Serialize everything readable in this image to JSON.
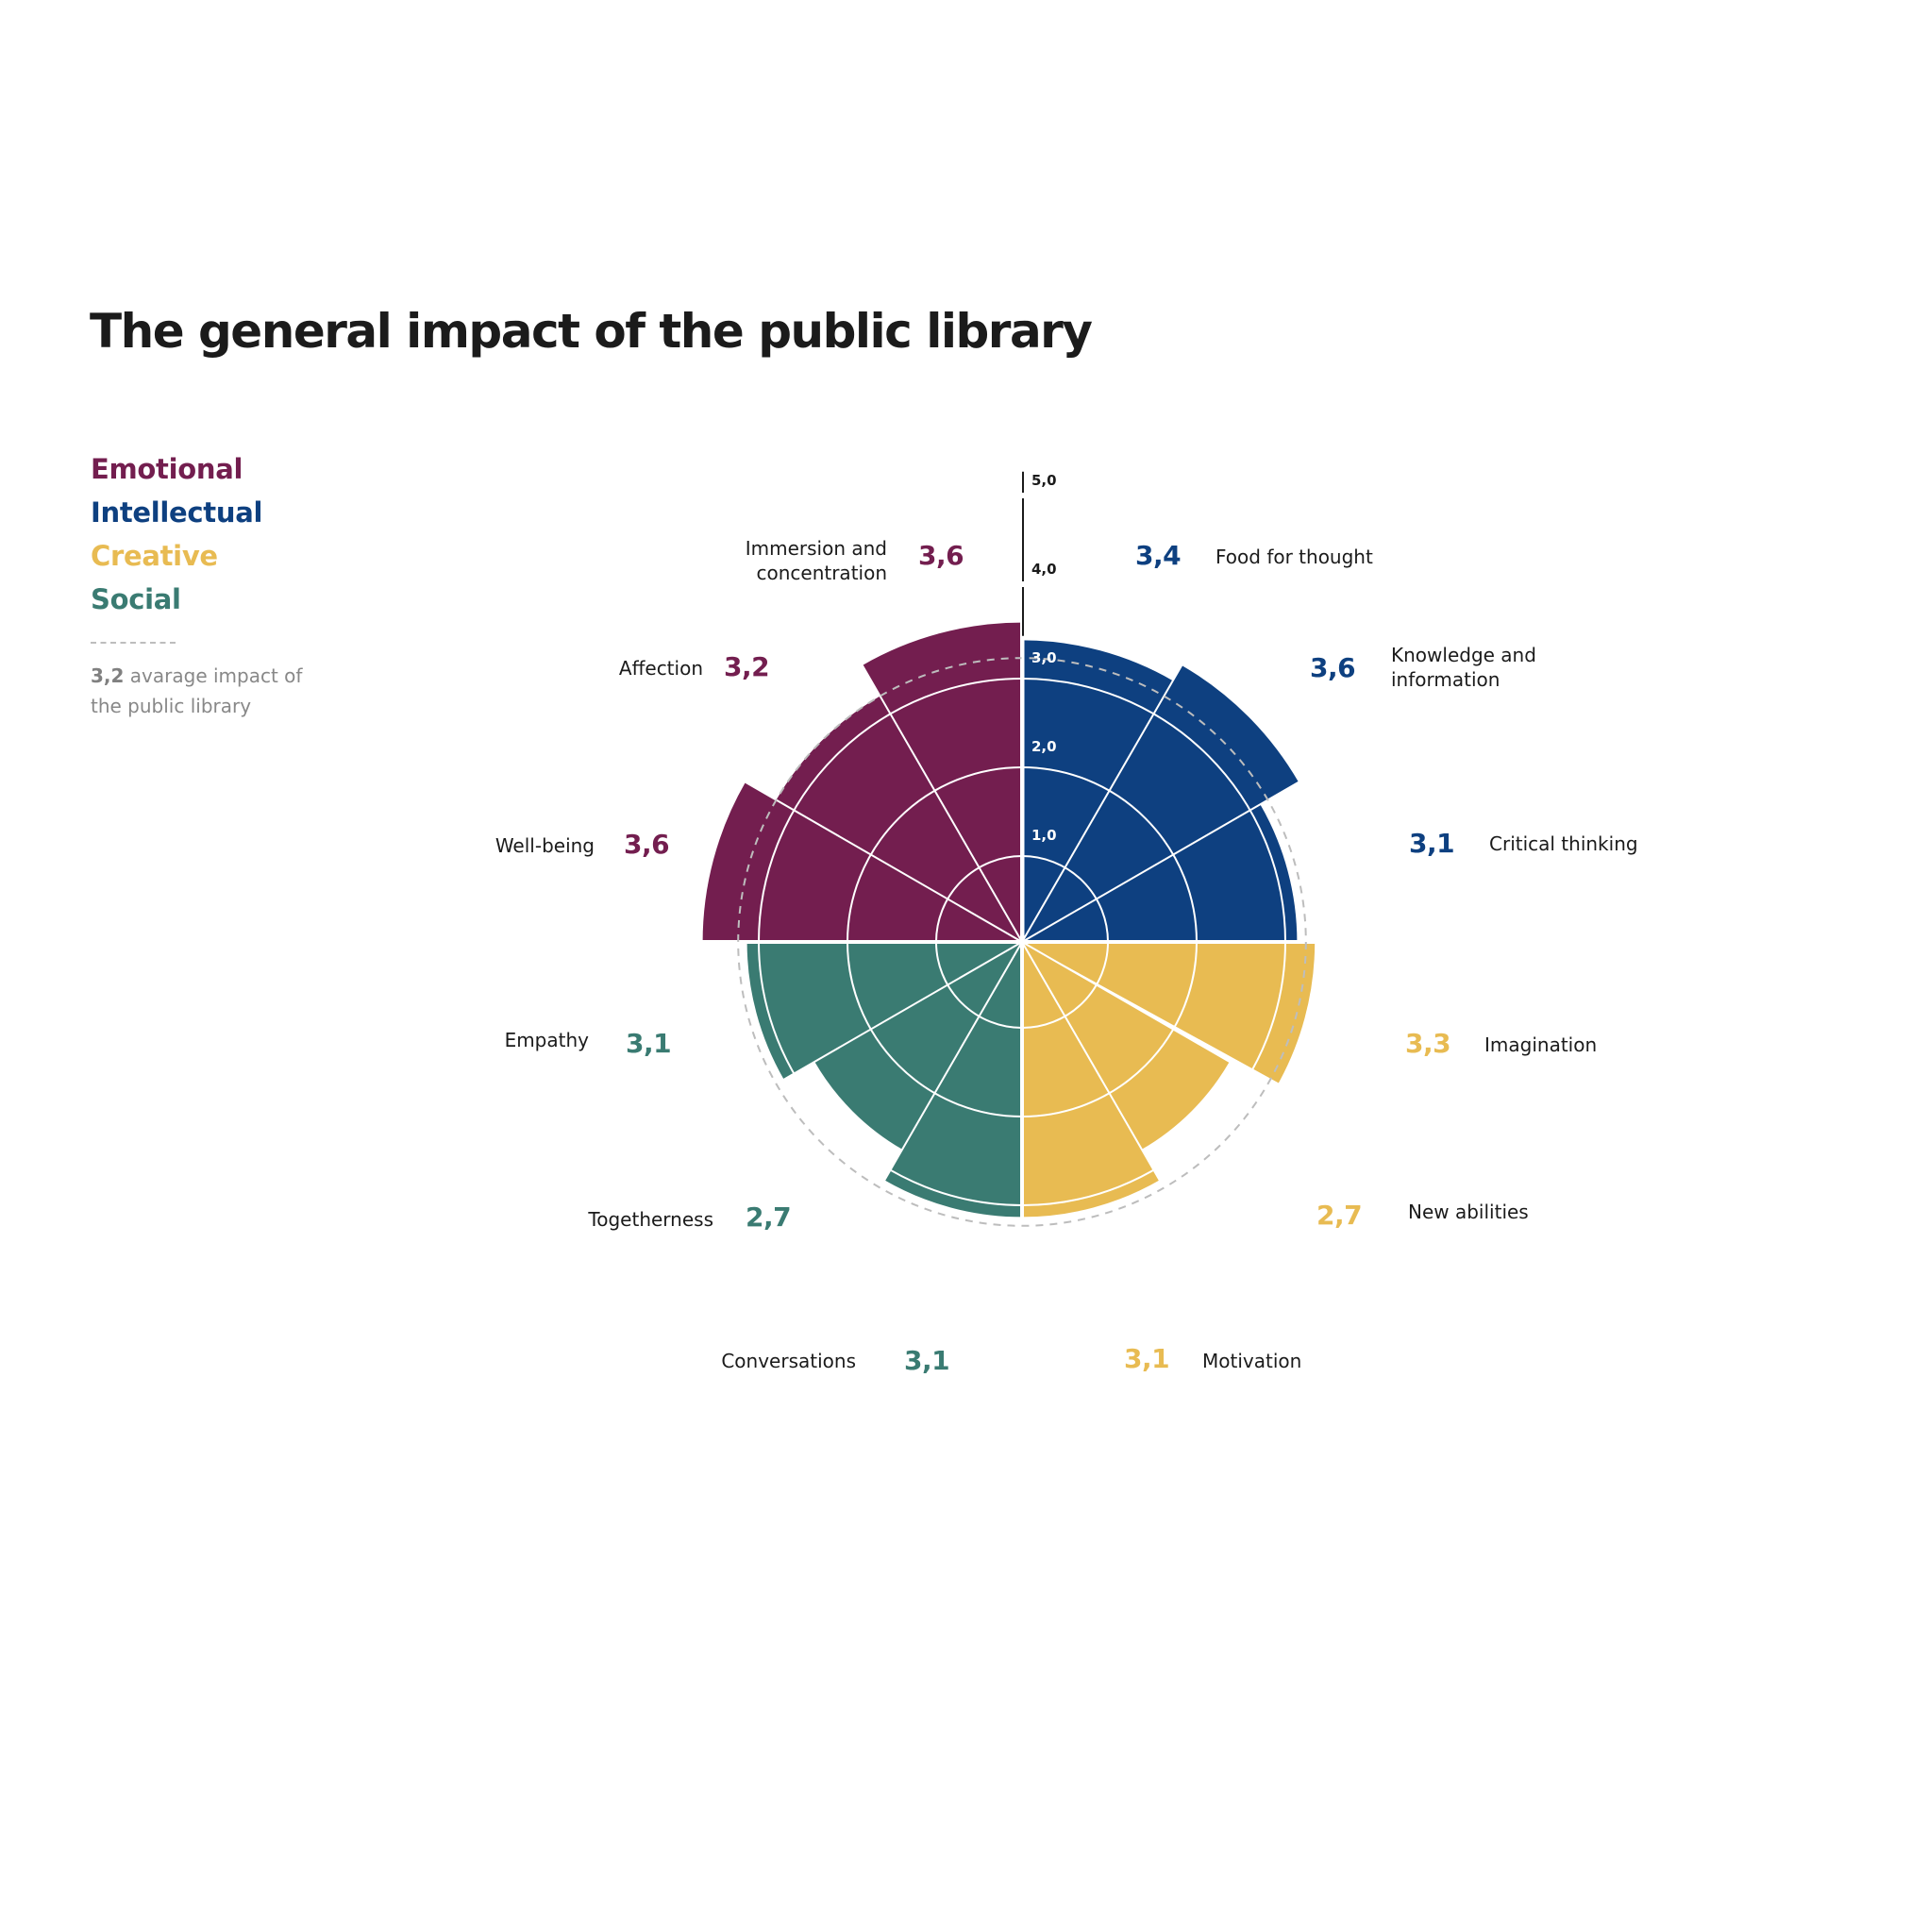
{
  "title": "The general impact of the public library",
  "legend": {
    "items": [
      {
        "label": "Emotional",
        "color": "#731E4F"
      },
      {
        "label": "Intellectual",
        "color": "#0E4080"
      },
      {
        "label": "Creative",
        "color": "#E8BB52"
      },
      {
        "label": "Social",
        "color": "#3A7B72"
      }
    ],
    "note_value": "3,2",
    "note_text_line1": " avarage impact of",
    "note_text_line2": "the public library"
  },
  "axis": {
    "ticks": [
      "1,0",
      "2,0",
      "3,0",
      "4,0",
      "5,0"
    ]
  },
  "chart_data": {
    "type": "polar_area",
    "title": "The general impact of the public library",
    "radial_range": [
      0,
      5
    ],
    "radial_ticks": [
      1.0,
      2.0,
      3.0,
      4.0,
      5.0
    ],
    "reference_line": {
      "value": 3.2,
      "label": "avarage impact of the public library",
      "style": "dashed"
    },
    "legend_position": "top-left",
    "categories": [
      "Food for thought",
      "Knowledge and information",
      "Critical thinking",
      "Imagination",
      "New abilities",
      "Motivation",
      "Conversations",
      "Togetherness",
      "Empathy",
      "Well-being",
      "Affection",
      "Immersion and concentration"
    ],
    "values": [
      3.4,
      3.6,
      3.1,
      3.3,
      2.7,
      3.1,
      3.1,
      2.7,
      3.1,
      3.6,
      3.2,
      3.6
    ],
    "series": [
      {
        "name": "Intellectual",
        "color": "#0E4080",
        "categories": [
          "Food for thought",
          "Knowledge and information",
          "Critical thinking"
        ],
        "values": [
          3.4,
          3.6,
          3.1
        ]
      },
      {
        "name": "Creative",
        "color": "#E8BB52",
        "categories": [
          "Imagination",
          "New abilities",
          "Motivation"
        ],
        "values": [
          3.3,
          2.7,
          3.1
        ]
      },
      {
        "name": "Social",
        "color": "#3A7B72",
        "categories": [
          "Conversations",
          "Togetherness",
          "Empathy"
        ],
        "values": [
          3.1,
          2.7,
          3.1
        ]
      },
      {
        "name": "Emotional",
        "color": "#731E4F",
        "categories": [
          "Well-being",
          "Affection",
          "Immersion and concentration"
        ],
        "values": [
          3.6,
          3.2,
          3.6
        ]
      }
    ]
  },
  "slices": [
    {
      "label": "Food for thought",
      "value": 3.4,
      "display": "3,4",
      "color": "#0E4080"
    },
    {
      "label": "Knowledge and information",
      "value": 3.6,
      "display": "3,6",
      "color": "#0E4080"
    },
    {
      "label": "Critical thinking",
      "value": 3.1,
      "display": "3,1",
      "color": "#0E4080"
    },
    {
      "label": "Imagination",
      "value": 3.3,
      "display": "3,3",
      "color": "#E8BB52"
    },
    {
      "label": "New abilities",
      "value": 2.7,
      "display": "2,7",
      "color": "#E8BB52"
    },
    {
      "label": "Motivation",
      "value": 3.1,
      "display": "3,1",
      "color": "#E8BB52"
    },
    {
      "label": "Conversations",
      "value": 3.1,
      "display": "3,1",
      "color": "#3A7B72"
    },
    {
      "label": "Togetherness",
      "value": 2.7,
      "display": "2,7",
      "color": "#3A7B72"
    },
    {
      "label": "Empathy",
      "value": 3.1,
      "display": "3,1",
      "color": "#3A7B72"
    },
    {
      "label": "Well-being",
      "value": 3.6,
      "display": "3,6",
      "color": "#731E4F"
    },
    {
      "label": "Affection",
      "value": 3.2,
      "display": "3,2",
      "color": "#731E4F"
    },
    {
      "label": "Immersion and concentration",
      "value": 3.6,
      "display": "3,6",
      "color": "#731E4F"
    }
  ],
  "labels": {
    "food_line1": "Food for thought",
    "knowledge_line1": "Knowledge and",
    "knowledge_line2": "information",
    "critical_line1": "Critical thinking",
    "imagination_line1": "Imagination",
    "new_abilities_line1": "New abilities",
    "motivation_line1": "Motivation",
    "conversations_line1": "Conversations",
    "togetherness_line1": "Togetherness",
    "empathy_line1": "Empathy",
    "wellbeing_line1": "Well-being",
    "affection_line1": "Affection",
    "immersion_line1": "Immersion and",
    "immersion_line2": "concentration"
  }
}
